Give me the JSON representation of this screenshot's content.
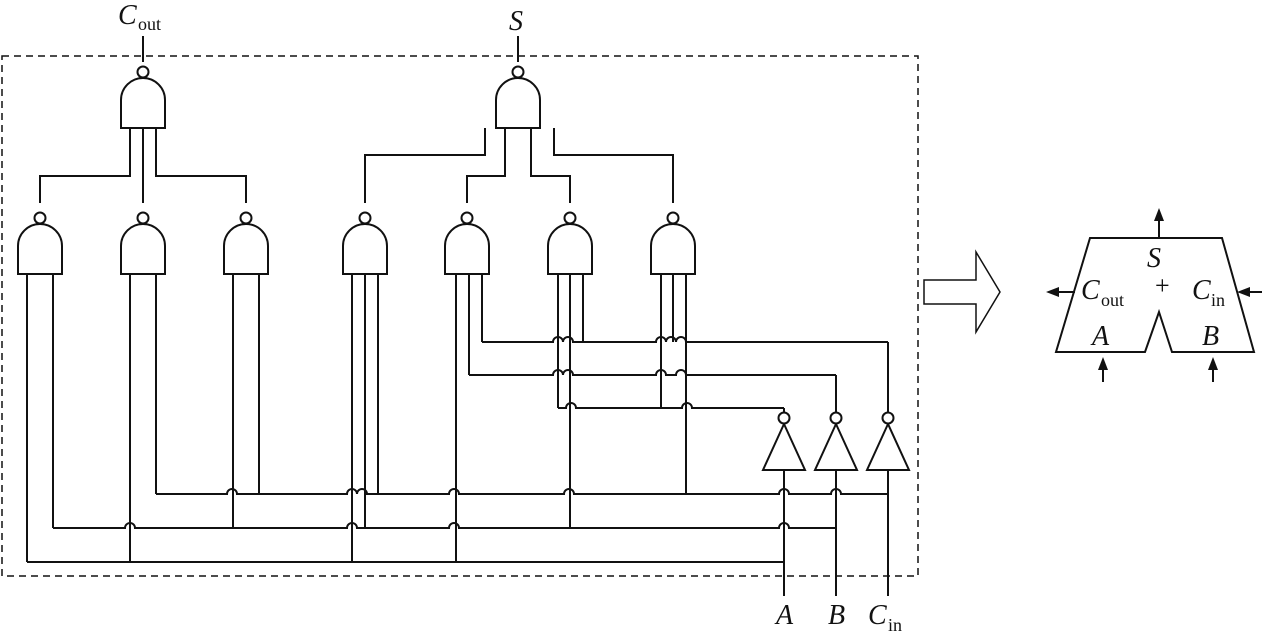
{
  "circuit": {
    "labels": {
      "cout_main": "C",
      "cout_sub": "out",
      "s": "S",
      "a": "A",
      "b": "B",
      "cin_main": "C",
      "cin_sub": "in"
    }
  },
  "adder_symbol": {
    "s": "S",
    "plus": "+",
    "cout_main": "C",
    "cout_sub": "out",
    "cin_main": "C",
    "cin_sub": "in",
    "a": "A",
    "b": "B"
  }
}
